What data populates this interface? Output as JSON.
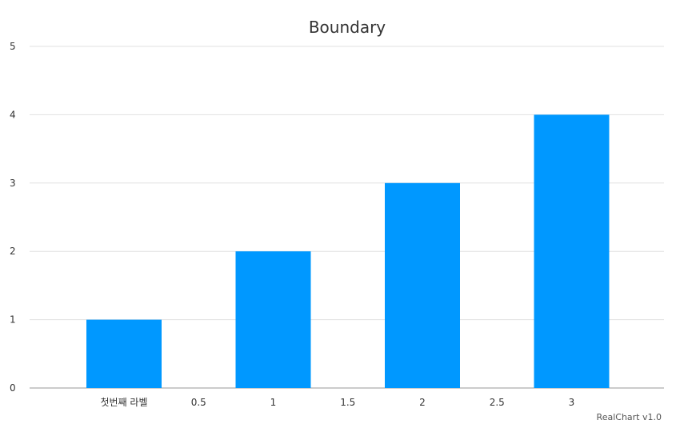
{
  "chart_data": {
    "type": "bar",
    "title": "Boundary",
    "xlabel": "",
    "ylabel": "",
    "x_values": [
      0,
      1,
      2,
      3
    ],
    "values": [
      1,
      2,
      3,
      4
    ],
    "x_ticks": [
      "첫번째 라벨",
      "0.5",
      "1",
      "1.5",
      "2",
      "2.5",
      "3"
    ],
    "y_ticks": [
      "0",
      "1",
      "2",
      "3",
      "4",
      "5"
    ],
    "xlim": [
      0,
      3
    ],
    "ylim": [
      0,
      5
    ],
    "grid": true,
    "bar_color": "#0098FF",
    "grid_color": "#E0E0E0",
    "axis_color": "#999999"
  },
  "credit": "RealChart v1.0"
}
